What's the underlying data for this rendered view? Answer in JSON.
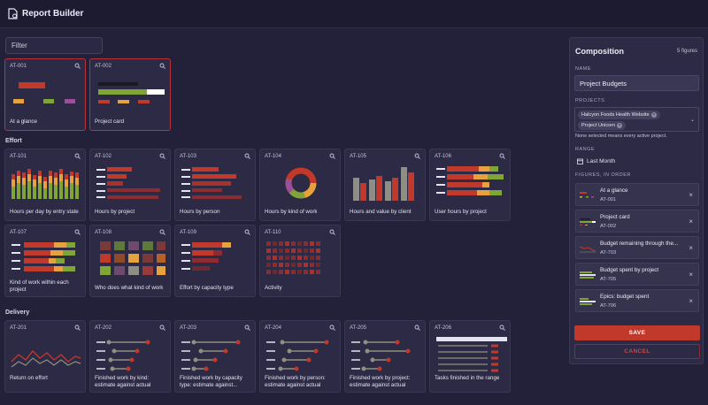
{
  "app": {
    "title": "Report Builder"
  },
  "filter": {
    "placeholder": "Filter"
  },
  "sections": {
    "effort": "Effort",
    "delivery": "Delivery"
  },
  "cards": {
    "top": [
      {
        "id": "AT-001",
        "name": "At a glance",
        "selected": true
      },
      {
        "id": "AT-002",
        "name": "Project card",
        "selected": true
      }
    ],
    "effort": [
      {
        "id": "AT-101",
        "name": "Hours per day by entry state"
      },
      {
        "id": "AT-102",
        "name": "Hours by project"
      },
      {
        "id": "AT-103",
        "name": "Hours by person"
      },
      {
        "id": "AT-104",
        "name": "Hours by kind of work"
      },
      {
        "id": "AT-105",
        "name": "Hours and value by client"
      },
      {
        "id": "AT-106",
        "name": "User hours by project"
      },
      {
        "id": "AT-107",
        "name": "Kind of work within each project"
      },
      {
        "id": "AT-108",
        "name": "Who does what kind of work"
      },
      {
        "id": "AT-109",
        "name": "Effort by capacity type"
      },
      {
        "id": "AT-110",
        "name": "Activity"
      }
    ],
    "delivery": [
      {
        "id": "AT-201",
        "name": "Return on effort"
      },
      {
        "id": "AT-202",
        "name": "Finished work by kind: estimate against actual"
      },
      {
        "id": "AT-203",
        "name": "Finished work by capacity type: estimate against..."
      },
      {
        "id": "AT-204",
        "name": "Finished work by person: estimate against actual"
      },
      {
        "id": "AT-205",
        "name": "Finished work by project: estimate against actual"
      },
      {
        "id": "AT-206",
        "name": "Tasks finished in the range"
      }
    ]
  },
  "composition": {
    "title": "Composition",
    "count": "5 figures",
    "name_label": "NAME",
    "name_value": "Project Budgets",
    "projects_label": "PROJECTS",
    "projects": [
      "Halcyon Foods Health Website",
      "Project Unicorn"
    ],
    "projects_hint": "None selected means every active project.",
    "range_label": "RANGE",
    "range_value": "Last Month",
    "figures_label": "FIGURES, IN ORDER",
    "figures": [
      {
        "title": "At a glance",
        "id": "AT-001"
      },
      {
        "title": "Project card",
        "id": "AT-002"
      },
      {
        "title": "Budget remaining through the...",
        "id": "AT-703"
      },
      {
        "title": "Budget spent by project",
        "id": "AT-705"
      },
      {
        "title": "Epics: budget spent",
        "id": "AT-706"
      }
    ],
    "save_label": "SAVE",
    "cancel_label": "CANCEL"
  },
  "colors": {
    "accent": "#c0392b",
    "orange": "#e6a23c",
    "green": "#7ea536",
    "purple": "#9b4f96",
    "background": "#23213a",
    "card": "#2c2a44"
  },
  "icons": {
    "app": "document-icon",
    "zoom": "magnifier-icon",
    "calendar": "calendar-icon",
    "remove": "close-icon"
  }
}
